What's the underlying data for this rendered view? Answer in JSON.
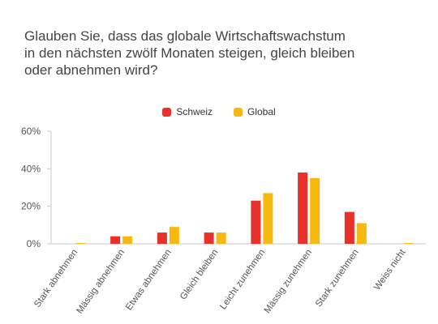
{
  "chart_data": {
    "type": "bar",
    "title": "Glauben Sie, dass das globale Wirtschaftswachstum\nin den nächsten zwölf Monaten steigen, gleich bleiben\noder abnehmen wird?",
    "categories": [
      "Stark abnehmen",
      "Mässig abnehmen",
      "Etwas abnehmen",
      "Gleich bleiben",
      "Leicht zunehmen",
      "Mässig zunehmen",
      "Stark zunehmen",
      "Weiss nicht"
    ],
    "series": [
      {
        "name": "Schweiz",
        "color": "#e8312a",
        "values": [
          0,
          4,
          6,
          6,
          23,
          38,
          17,
          0
        ]
      },
      {
        "name": "Global",
        "color": "#f6b90f",
        "values": [
          0.4,
          4,
          9,
          6,
          27,
          35,
          11,
          0.4
        ]
      }
    ],
    "ylim": [
      0,
      60
    ],
    "yticks": [
      "0%",
      "20%",
      "40%",
      "60%"
    ],
    "ytick_values": [
      0,
      20,
      40,
      60
    ],
    "grid": false,
    "legend_position": "top-center",
    "xlabel": "",
    "ylabel": ""
  }
}
